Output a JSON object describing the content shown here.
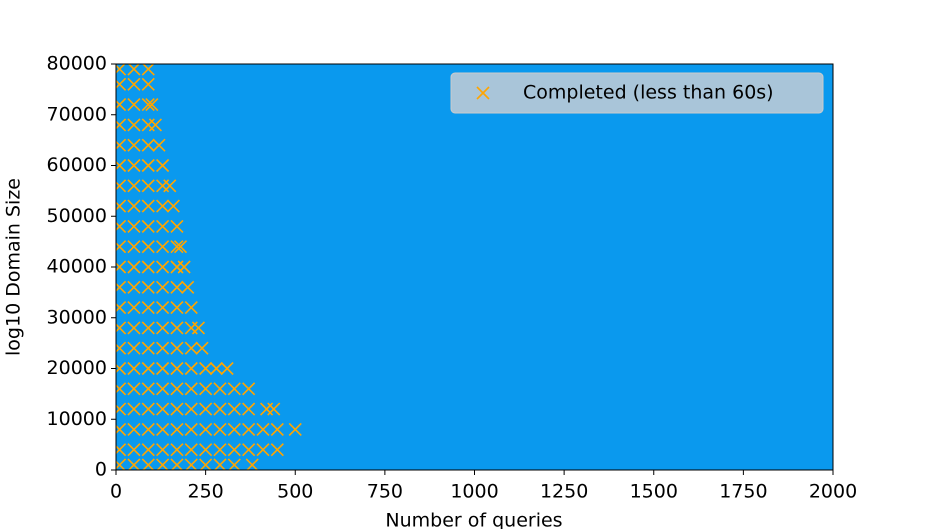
{
  "chart_data": {
    "type": "scatter",
    "xlabel": "Number of queries",
    "ylabel": "log10 Domain Size",
    "xlim": [
      0,
      2000
    ],
    "xticks": [
      0,
      250,
      500,
      750,
      1000,
      1250,
      1500,
      1750,
      2000
    ],
    "ylim": [
      0,
      80000
    ],
    "yticks": [
      0,
      10000,
      20000,
      30000,
      40000,
      50000,
      60000,
      70000,
      80000
    ],
    "facecolor": "#0a99ee",
    "legend": "upper right",
    "series": [
      {
        "name": "Completed (less than 60s)",
        "color": "#ffa500",
        "marker": "x",
        "x": [
          10,
          50,
          90,
          10,
          50,
          90,
          10,
          50,
          90,
          100,
          10,
          50,
          90,
          110,
          10,
          50,
          90,
          120,
          10,
          50,
          90,
          130,
          10,
          50,
          90,
          130,
          150,
          10,
          50,
          90,
          130,
          160,
          10,
          50,
          90,
          130,
          170,
          10,
          50,
          90,
          130,
          170,
          180,
          10,
          50,
          90,
          130,
          170,
          190,
          10,
          50,
          90,
          130,
          170,
          200,
          10,
          50,
          90,
          130,
          170,
          210,
          10,
          50,
          90,
          130,
          170,
          210,
          230,
          10,
          50,
          90,
          130,
          170,
          210,
          240,
          10,
          50,
          90,
          130,
          170,
          210,
          250,
          280,
          310,
          10,
          50,
          90,
          130,
          170,
          210,
          250,
          290,
          330,
          370,
          10,
          50,
          90,
          130,
          170,
          210,
          250,
          290,
          330,
          370,
          420,
          440,
          10,
          50,
          90,
          130,
          170,
          210,
          250,
          290,
          330,
          370,
          410,
          450,
          500,
          10,
          50,
          90,
          130,
          170,
          210,
          250,
          290,
          330,
          370,
          410,
          450,
          10,
          50,
          90,
          130,
          170,
          210,
          250,
          290,
          330,
          380
        ],
        "y": [
          79000,
          79000,
          79000,
          76000,
          76000,
          76000,
          72000,
          72000,
          72000,
          72000,
          68000,
          68000,
          68000,
          68000,
          64000,
          64000,
          64000,
          64000,
          60000,
          60000,
          60000,
          60000,
          56000,
          56000,
          56000,
          56000,
          56000,
          52000,
          52000,
          52000,
          52000,
          52000,
          48000,
          48000,
          48000,
          48000,
          48000,
          44000,
          44000,
          44000,
          44000,
          44000,
          44000,
          40000,
          40000,
          40000,
          40000,
          40000,
          40000,
          36000,
          36000,
          36000,
          36000,
          36000,
          36000,
          32000,
          32000,
          32000,
          32000,
          32000,
          32000,
          28000,
          28000,
          28000,
          28000,
          28000,
          28000,
          28000,
          24000,
          24000,
          24000,
          24000,
          24000,
          24000,
          24000,
          20000,
          20000,
          20000,
          20000,
          20000,
          20000,
          20000,
          20000,
          20000,
          16000,
          16000,
          16000,
          16000,
          16000,
          16000,
          16000,
          16000,
          16000,
          16000,
          12000,
          12000,
          12000,
          12000,
          12000,
          12000,
          12000,
          12000,
          12000,
          12000,
          12000,
          12000,
          8000,
          8000,
          8000,
          8000,
          8000,
          8000,
          8000,
          8000,
          8000,
          8000,
          8000,
          8000,
          8000,
          4000,
          4000,
          4000,
          4000,
          4000,
          4000,
          4000,
          4000,
          4000,
          4000,
          4000,
          4000,
          1000,
          1000,
          1000,
          1000,
          1000,
          1000,
          1000,
          1000,
          1000,
          1000
        ]
      }
    ]
  }
}
